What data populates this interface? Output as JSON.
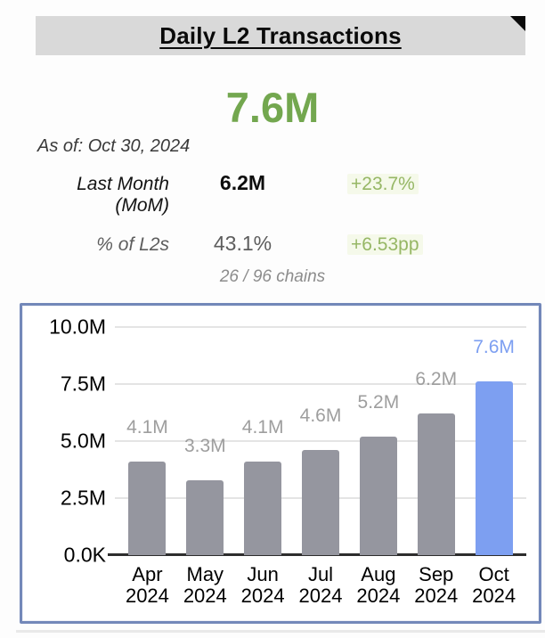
{
  "page": {
    "background": "#fdfdfd"
  },
  "header": {
    "title": "Daily L2 Transactions",
    "bar_color": "#d9d9d9",
    "note_marker_color": "#0b0b0b"
  },
  "summary": {
    "main_value": "7.6M",
    "main_value_color": "#73a74f",
    "as_of": "As of: Oct 30, 2024",
    "stats": [
      {
        "label": "Last Month (MoM)",
        "value": "6.2M",
        "change": "+23.7%"
      },
      {
        "label": "% of L2s",
        "value": "43.1%",
        "change": "+6.53pp"
      }
    ],
    "change_color": "#96b765",
    "chains_note": "26 / 96 chains"
  },
  "chart_data": {
    "type": "bar",
    "title": "",
    "categories": [
      "Apr 2024",
      "May 2024",
      "Jun 2024",
      "Jul 2024",
      "Aug 2024",
      "Sep 2024",
      "Oct 2024"
    ],
    "values": [
      4.1,
      3.3,
      4.1,
      4.6,
      5.2,
      6.2,
      7.6
    ],
    "value_labels": [
      "4.1M",
      "3.3M",
      "4.1M",
      "4.6M",
      "5.2M",
      "6.2M",
      "7.6M"
    ],
    "unit": "M",
    "ylim": [
      0,
      10
    ],
    "y_ticks": [
      {
        "value": 10,
        "label": "10.0M"
      },
      {
        "value": 7.5,
        "label": "7.5M"
      },
      {
        "value": 5,
        "label": "5.0M"
      },
      {
        "value": 2.5,
        "label": "2.5M"
      },
      {
        "value": 0,
        "label": "0.0K"
      }
    ],
    "grid": true,
    "legend": false,
    "highlight_index": 6,
    "bar_color": "#95969f",
    "highlight_color": "#7d9ff1",
    "label_color": "#9e9e9e",
    "highlight_label_color": "#7d9ff1",
    "border_color": "#7388b9"
  }
}
